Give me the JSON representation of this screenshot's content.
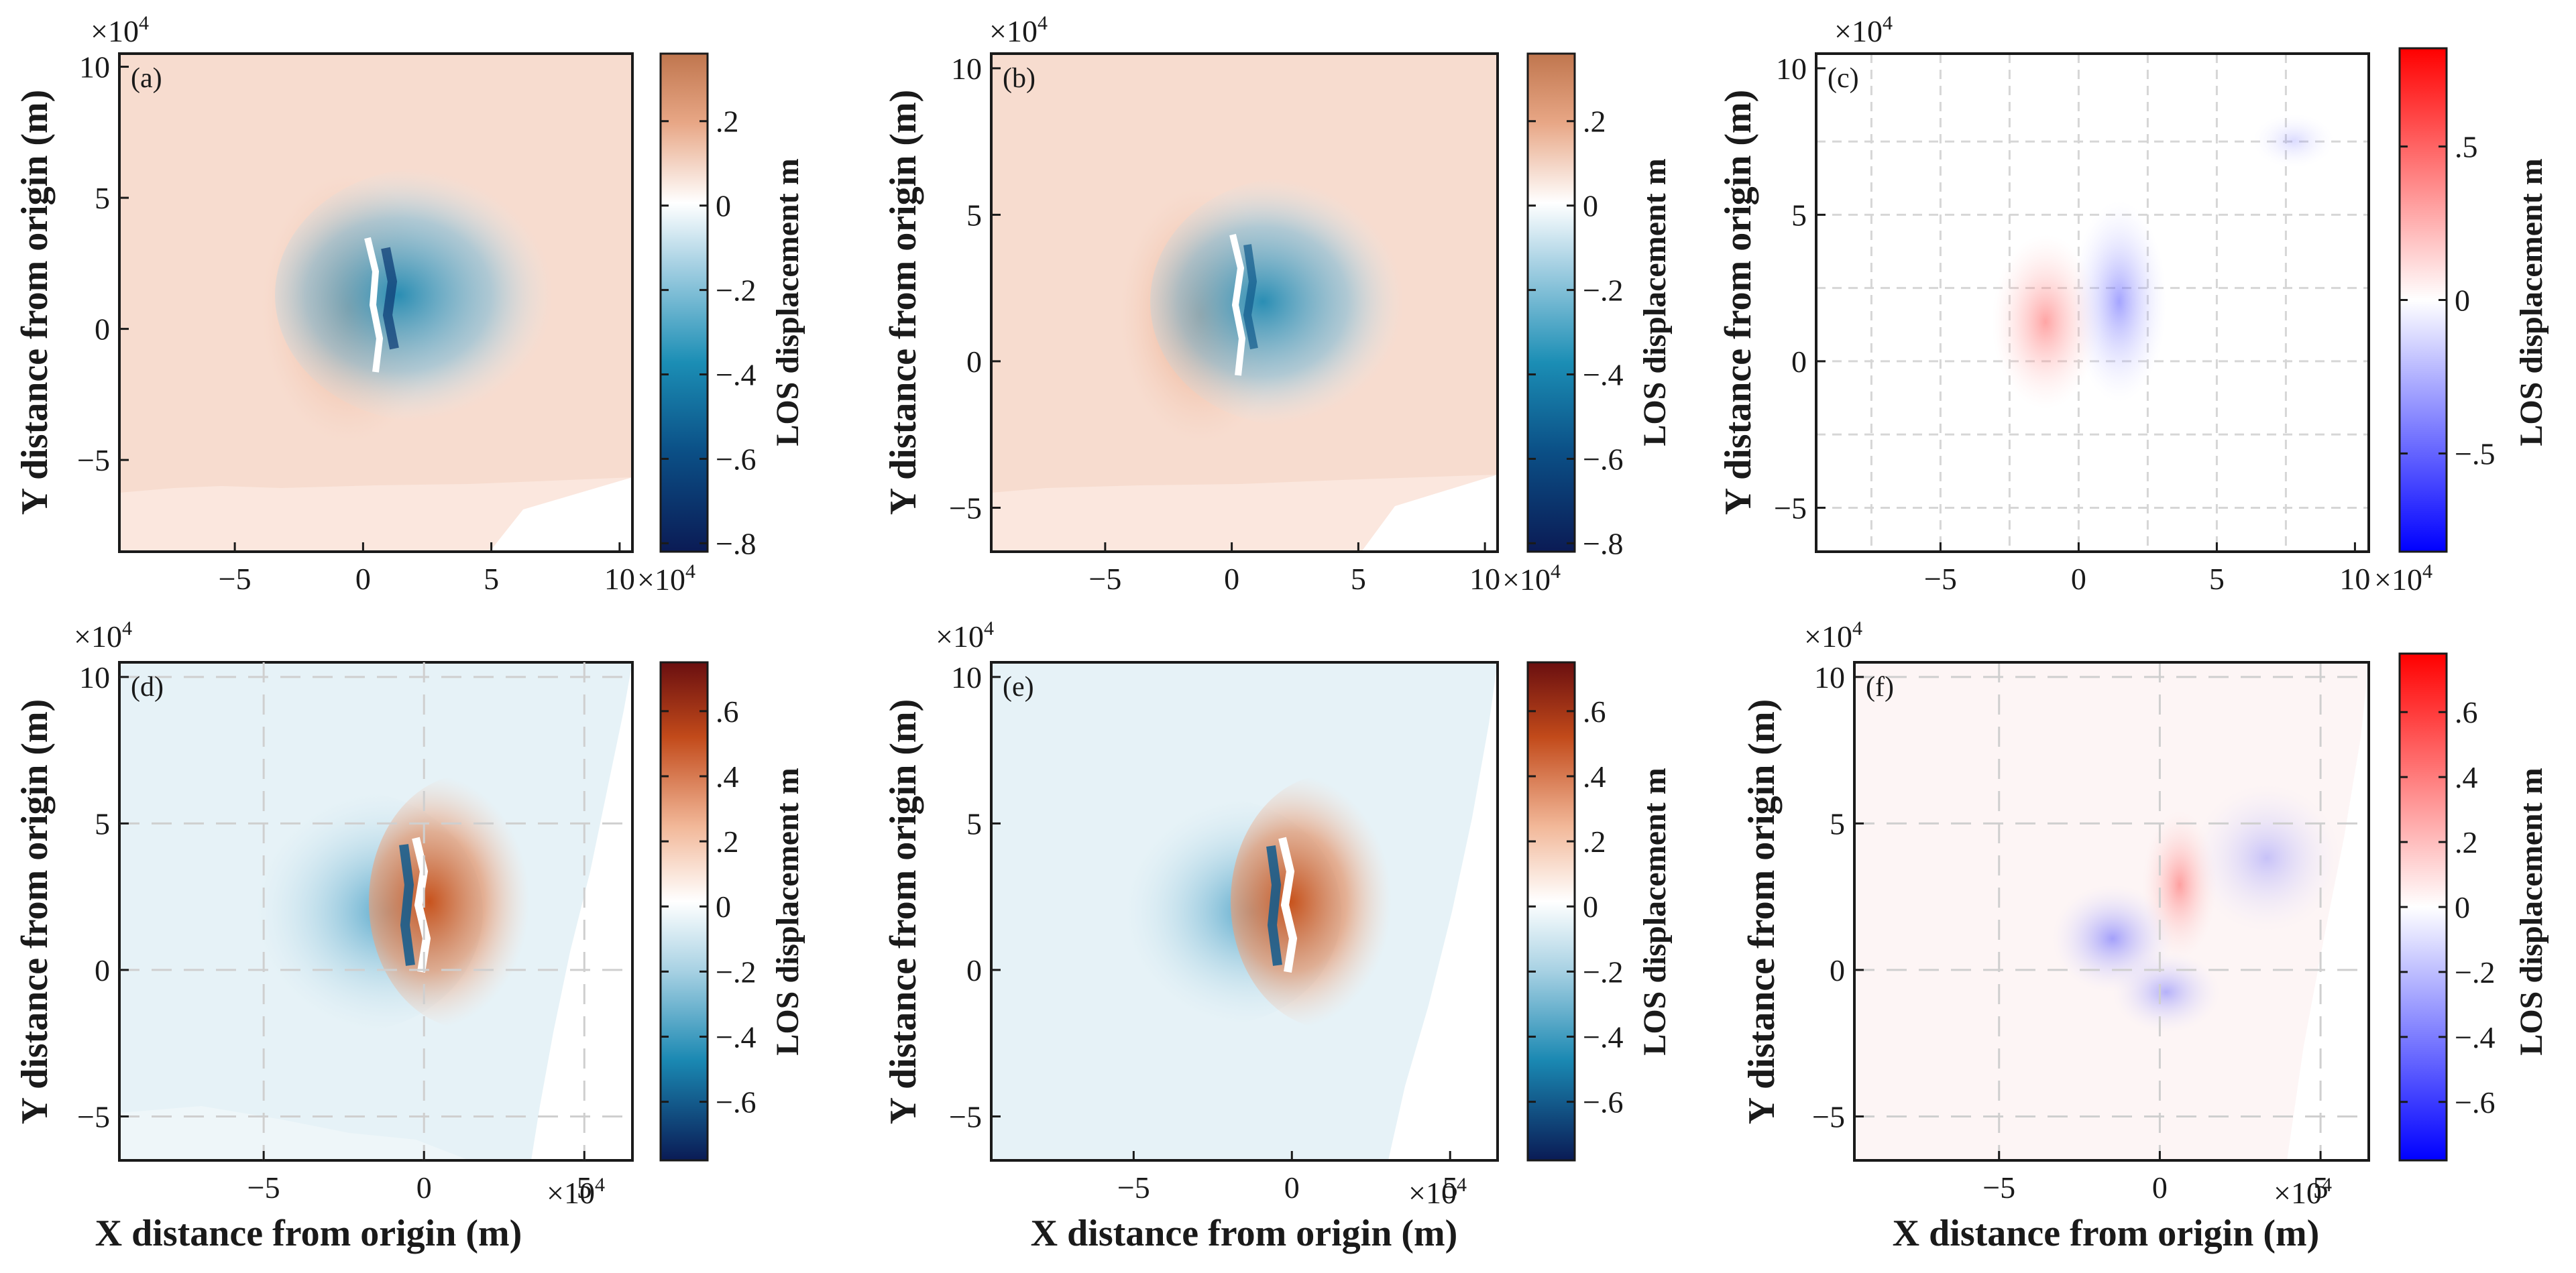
{
  "chart_data": [
    {
      "type": "heatmap",
      "panel_label": "(a)",
      "xlabel": "",
      "ylabel": "Y distance from origin (m)",
      "xlim": [
        -9.5,
        10.5
      ],
      "ylim": [
        -8.5,
        10.5
      ],
      "xticks": [
        -5,
        0,
        5,
        10
      ],
      "yticks": [
        -5,
        0,
        5,
        10
      ],
      "x_multiplier": "×10",
      "x_multiplier_exp": "4",
      "y_multiplier": "×10",
      "y_multiplier_exp": "4",
      "colorbar": {
        "label": "LOS displacement m",
        "range": [
          -0.82,
          0.36
        ],
        "ticks": [
          0.2,
          0,
          -0.2,
          -0.4,
          -0.6,
          -0.8
        ],
        "colormap": "diverging-blue-white-orange"
      }
    },
    {
      "type": "heatmap",
      "panel_label": "(b)",
      "xlabel": "",
      "ylabel": "Y distance from origin (m)",
      "xlim": [
        -9.5,
        10.5
      ],
      "ylim": [
        -6.5,
        10.5
      ],
      "xticks": [
        -5,
        0,
        5,
        10
      ],
      "yticks": [
        -5,
        0,
        5,
        10
      ],
      "x_multiplier": "×10",
      "x_multiplier_exp": "4",
      "y_multiplier": "×10",
      "y_multiplier_exp": "4",
      "colorbar": {
        "label": "LOS displacement m",
        "range": [
          -0.82,
          0.36
        ],
        "ticks": [
          0.2,
          0,
          -0.2,
          -0.4,
          -0.6,
          -0.8
        ],
        "colormap": "diverging-blue-white-orange"
      }
    },
    {
      "type": "heatmap",
      "panel_label": "(c)",
      "xlabel": "",
      "ylabel": "Y distance from origin (m)",
      "xlim": [
        -9.5,
        10.5
      ],
      "ylim": [
        -6.5,
        10.5
      ],
      "xticks": [
        -5,
        0,
        5,
        10
      ],
      "yticks": [
        -5,
        0,
        5,
        10
      ],
      "x_multiplier": "×10",
      "x_multiplier_exp": "4",
      "y_multiplier": "×10",
      "y_multiplier_exp": "4",
      "colorbar": {
        "label": "LOS displacement m",
        "range": [
          -0.82,
          0.82
        ],
        "ticks": [
          0.5,
          0,
          -0.5
        ],
        "colormap": "diverging-blue-white-red"
      }
    },
    {
      "type": "heatmap",
      "panel_label": "(d)",
      "xlabel": "X distance from origin (m)",
      "ylabel": "Y distance from origin (m)",
      "xlim": [
        -9.5,
        6.5
      ],
      "ylim": [
        -6.5,
        10.5
      ],
      "xticks": [
        -5,
        0,
        5
      ],
      "yticks": [
        -5,
        0,
        5,
        10
      ],
      "x_multiplier": "×10",
      "x_multiplier_exp": "4",
      "y_multiplier": "×10",
      "y_multiplier_exp": "4",
      "colorbar": {
        "label": "LOS displacement m",
        "range": [
          -0.78,
          0.75
        ],
        "ticks": [
          0.6,
          0.4,
          0.2,
          0,
          -0.2,
          -0.4,
          -0.6
        ],
        "colormap": "diverging-blue-white-orange"
      }
    },
    {
      "type": "heatmap",
      "panel_label": "(e)",
      "xlabel": "X distance from origin (m)",
      "ylabel": "Y distance from origin (m)",
      "xlim": [
        -9.5,
        6.5
      ],
      "ylim": [
        -6.5,
        10.5
      ],
      "xticks": [
        -5,
        0,
        5
      ],
      "yticks": [
        -5,
        0,
        5,
        10
      ],
      "x_multiplier": "×10",
      "x_multiplier_exp": "4",
      "y_multiplier": "×10",
      "y_multiplier_exp": "4",
      "colorbar": {
        "label": "LOS displacement m",
        "range": [
          -0.78,
          0.75
        ],
        "ticks": [
          0.6,
          0.4,
          0.2,
          0,
          -0.2,
          -0.4,
          -0.6
        ],
        "colormap": "diverging-blue-white-orange"
      }
    },
    {
      "type": "heatmap",
      "panel_label": "(f)",
      "xlabel": "X distance from origin (m)",
      "ylabel": "Y distance from origin (m)",
      "xlim": [
        -9.5,
        6.5
      ],
      "ylim": [
        -6.5,
        10.5
      ],
      "xticks": [
        -5,
        0,
        5
      ],
      "yticks": [
        -5,
        0,
        5,
        10
      ],
      "x_multiplier": "×10",
      "x_multiplier_exp": "4",
      "y_multiplier": "×10",
      "y_multiplier_exp": "4",
      "colorbar": {
        "label": "LOS displacement m",
        "range": [
          -0.78,
          0.78
        ],
        "ticks": [
          0.6,
          0.4,
          0.2,
          0,
          -0.2,
          -0.4,
          -0.6
        ],
        "colormap": "diverging-blue-white-red"
      }
    }
  ],
  "colors": {
    "orange_max": "#b2502a",
    "orange_light": "#f4c6b0",
    "white": "#ffffff",
    "blue_light": "#bfdde9",
    "teal_mid": "#1680a8",
    "navy_min": "#0b1f5c",
    "red_max": "#ff0000",
    "blue_max": "#0000ff",
    "dark_red_max": "#6e0d0d"
  }
}
